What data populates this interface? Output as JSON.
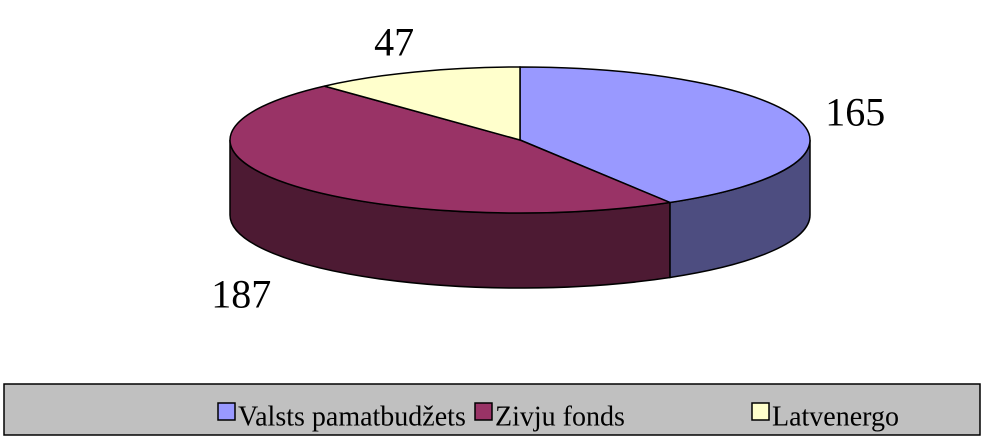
{
  "chart_data": {
    "type": "pie",
    "categories": [
      "Valsts pamatbudžets",
      "Zivju fonds",
      "Latvenergo"
    ],
    "values": [
      165,
      187,
      47
    ],
    "colors": [
      "#9999ff",
      "#993366",
      "#ffffcc"
    ],
    "side_colors": [
      "#4d4d80",
      "#4d1a33",
      "#808066"
    ]
  }
}
